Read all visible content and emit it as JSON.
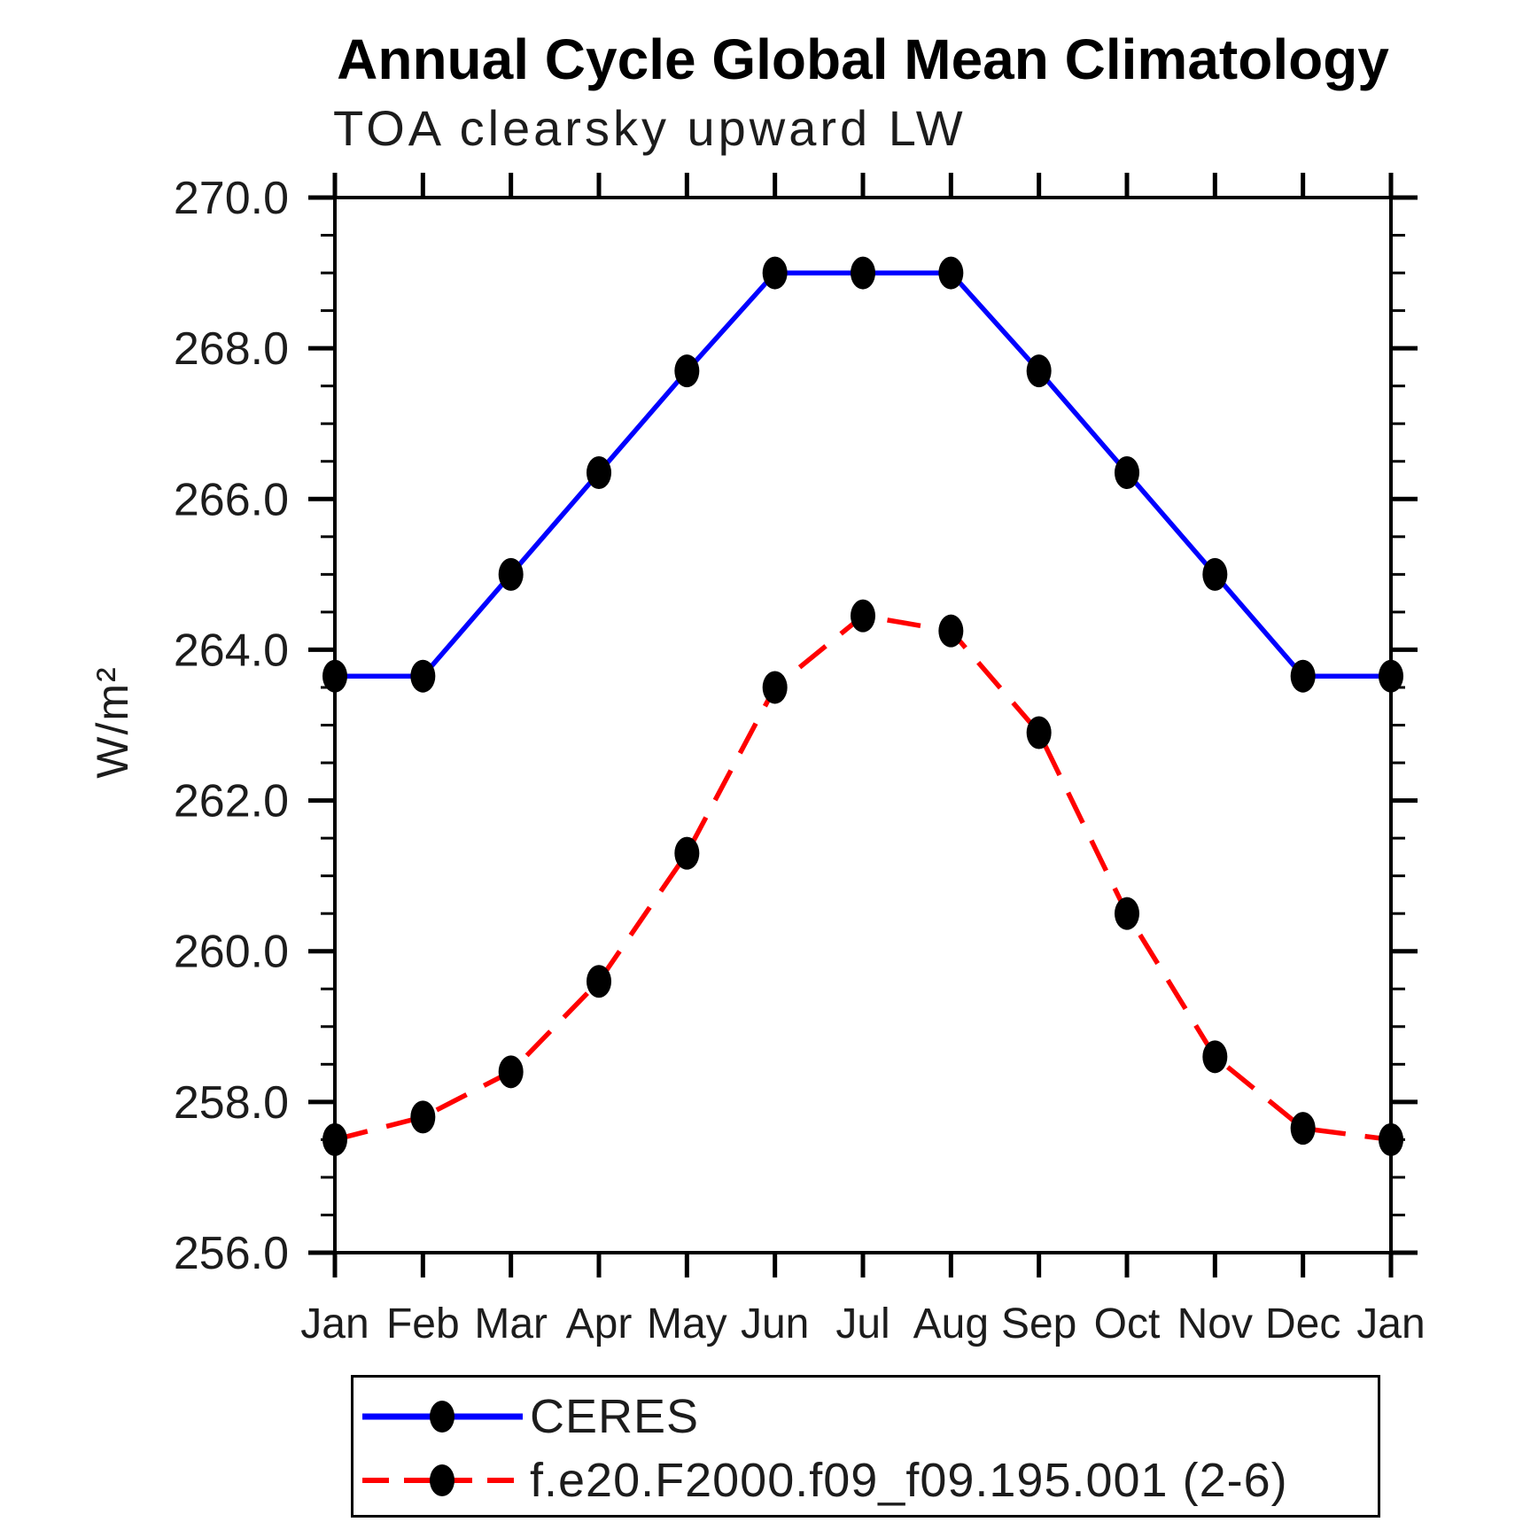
{
  "page": {
    "background_color": "#ffffff",
    "text_color": "#1c1c1c"
  },
  "chart_data": {
    "type": "line",
    "title": "Annual Cycle Global Mean Climatology",
    "subtitle": "TOA clearsky upward LW",
    "xlabel": "",
    "ylabel": "W/m²",
    "categories": [
      "Jan",
      "Feb",
      "Mar",
      "Apr",
      "May",
      "Jun",
      "Jul",
      "Aug",
      "Sep",
      "Oct",
      "Nov",
      "Dec",
      "Jan"
    ],
    "ylim": [
      256.0,
      270.0
    ],
    "ytick_interval": 2.0,
    "yminor_interval": 0.5,
    "ytick_labels": [
      "256.0",
      "258.0",
      "260.0",
      "262.0",
      "264.0",
      "266.0",
      "268.0",
      "270.0"
    ],
    "grid": false,
    "frame_color": "#000000",
    "marker_color": "#000000",
    "legend_position": "bottom-left-box",
    "series": [
      {
        "name": "CERES",
        "color": "#0000ff",
        "style": "solid",
        "marker": "filled-circle",
        "values": [
          263.65,
          263.65,
          265.0,
          266.35,
          267.7,
          269.0,
          269.0,
          269.0,
          267.7,
          266.35,
          265.0,
          263.65,
          263.65
        ]
      },
      {
        "name": "f.e20.F2000.f09_f09.195.001 (2-6)",
        "color": "#ff0000",
        "style": "dashed",
        "marker": "filled-circle",
        "values": [
          257.5,
          257.8,
          258.4,
          259.6,
          261.3,
          263.5,
          264.45,
          264.25,
          262.9,
          260.5,
          258.6,
          257.65,
          257.5
        ]
      }
    ]
  }
}
